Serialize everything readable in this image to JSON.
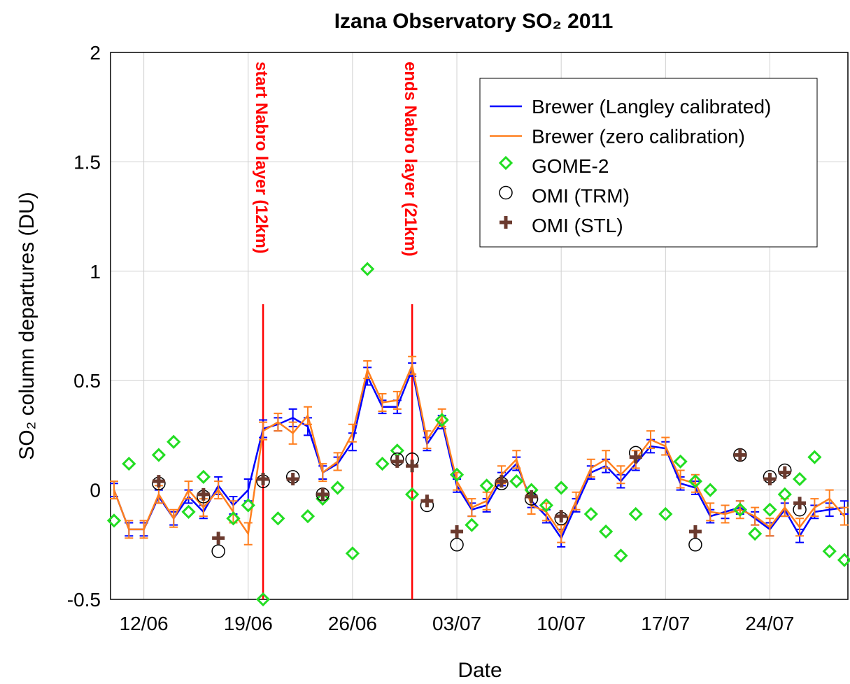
{
  "chart_data": {
    "type": "line",
    "title": "Izana Observatory SO₂ 2011",
    "x_label": "Date",
    "y_label": "SO₂ column departures (DU)",
    "xlim": [
      "10/06",
      "29/07"
    ],
    "xticks": [
      "12/06",
      "19/06",
      "26/06",
      "03/07",
      "10/07",
      "17/07",
      "24/07"
    ],
    "ylim": [
      -0.5,
      2
    ],
    "yticks": [
      -0.5,
      0,
      0.5,
      1,
      1.5,
      2
    ],
    "grid": true,
    "legend": "upper right",
    "annotations": [
      {
        "text": "start Nabro layer (12km)",
        "x": "20/06",
        "color": "#ff0000"
      },
      {
        "text": "ends Nabro layer (21km)",
        "x": "30/06",
        "color": "#ff0000"
      }
    ],
    "series": [
      {
        "name": "Brewer (Langley calibrated)",
        "color": "#0000ff",
        "marker": "none",
        "x": [
          "10/06",
          "11/06",
          "12/06",
          "13/06",
          "14/06",
          "15/06",
          "16/06",
          "17/06",
          "18/06",
          "19/06",
          "20/06",
          "21/06",
          "22/06",
          "23/06",
          "24/06",
          "25/06",
          "26/06",
          "27/06",
          "28/06",
          "29/06",
          "30/06",
          "01/07",
          "02/07",
          "03/07",
          "04/07",
          "05/07",
          "06/07",
          "07/07",
          "08/07",
          "09/07",
          "10/07",
          "11/07",
          "12/07",
          "13/07",
          "14/07",
          "15/07",
          "16/07",
          "17/07",
          "18/07",
          "19/07",
          "20/07",
          "21/07",
          "22/07",
          "23/07",
          "24/07",
          "25/07",
          "26/07",
          "27/07",
          "28/07",
          "29/07"
        ],
        "values": [
          0.0,
          -0.18,
          -0.18,
          -0.03,
          -0.13,
          -0.03,
          -0.1,
          0.02,
          -0.07,
          0.0,
          0.28,
          0.3,
          0.33,
          0.29,
          0.08,
          0.12,
          0.22,
          0.52,
          0.38,
          0.38,
          0.55,
          0.21,
          0.31,
          0.02,
          -0.09,
          -0.07,
          0.05,
          0.12,
          -0.05,
          -0.12,
          -0.22,
          -0.07,
          0.08,
          0.11,
          0.04,
          0.12,
          0.2,
          0.19,
          0.03,
          0.01,
          -0.12,
          -0.1,
          -0.08,
          -0.13,
          -0.18,
          -0.09,
          -0.21,
          -0.1,
          -0.09,
          -0.08
        ],
        "errors": [
          0.03,
          0.03,
          0.03,
          0.03,
          0.03,
          0.03,
          0.03,
          0.04,
          0.04,
          0.05,
          0.04,
          0.03,
          0.04,
          0.04,
          0.03,
          0.03,
          0.04,
          0.04,
          0.03,
          0.03,
          0.03,
          0.03,
          0.03,
          0.03,
          0.03,
          0.03,
          0.03,
          0.03,
          0.03,
          0.03,
          0.04,
          0.03,
          0.03,
          0.03,
          0.03,
          0.03,
          0.03,
          0.03,
          0.03,
          0.03,
          0.03,
          0.03,
          0.03,
          0.03,
          0.03,
          0.03,
          0.03,
          0.03,
          0.03,
          0.03
        ]
      },
      {
        "name": "Brewer (zero calibration)",
        "color": "#ff7f1e",
        "marker": "none",
        "x": [
          "10/06",
          "11/06",
          "12/06",
          "13/06",
          "14/06",
          "15/06",
          "16/06",
          "17/06",
          "18/06",
          "19/06",
          "20/06",
          "21/06",
          "22/06",
          "23/06",
          "24/06",
          "25/06",
          "26/06",
          "27/06",
          "28/06",
          "29/06",
          "30/06",
          "01/07",
          "02/07",
          "03/07",
          "04/07",
          "05/07",
          "06/07",
          "07/07",
          "08/07",
          "09/07",
          "10/07",
          "11/07",
          "12/07",
          "13/07",
          "14/07",
          "15/07",
          "16/07",
          "17/07",
          "18/07",
          "19/07",
          "20/07",
          "21/07",
          "22/07",
          "23/07",
          "24/07",
          "25/07",
          "26/07",
          "27/07",
          "28/07",
          "29/07"
        ],
        "values": [
          0.0,
          -0.18,
          -0.18,
          -0.02,
          -0.13,
          0.0,
          -0.08,
          0.0,
          -0.1,
          -0.2,
          0.27,
          0.31,
          0.26,
          0.34,
          0.08,
          0.13,
          0.26,
          0.55,
          0.4,
          0.41,
          0.57,
          0.23,
          0.33,
          0.04,
          -0.08,
          -0.05,
          0.07,
          0.14,
          -0.07,
          -0.1,
          -0.2,
          -0.05,
          0.1,
          0.14,
          0.07,
          0.14,
          0.23,
          0.2,
          0.05,
          0.03,
          -0.1,
          -0.11,
          -0.09,
          -0.12,
          -0.17,
          -0.08,
          -0.17,
          -0.08,
          -0.04,
          -0.12
        ],
        "errors": [
          0.04,
          0.04,
          0.04,
          0.04,
          0.04,
          0.04,
          0.04,
          0.04,
          0.05,
          0.05,
          0.04,
          0.04,
          0.05,
          0.04,
          0.04,
          0.04,
          0.04,
          0.04,
          0.04,
          0.04,
          0.04,
          0.04,
          0.04,
          0.04,
          0.04,
          0.04,
          0.04,
          0.04,
          0.04,
          0.04,
          0.04,
          0.04,
          0.04,
          0.04,
          0.04,
          0.04,
          0.04,
          0.04,
          0.04,
          0.04,
          0.04,
          0.04,
          0.04,
          0.04,
          0.04,
          0.04,
          0.04,
          0.04,
          0.04,
          0.04
        ]
      },
      {
        "name": "GOME-2",
        "color": "#22dd22",
        "marker": "diamond",
        "x": [
          "10/06",
          "11/06",
          "13/06",
          "14/06",
          "15/06",
          "16/06",
          "18/06",
          "19/06",
          "20/06",
          "21/06",
          "23/06",
          "24/06",
          "25/06",
          "26/06",
          "27/06",
          "28/06",
          "29/06",
          "30/06",
          "02/07",
          "03/07",
          "04/07",
          "05/07",
          "07/07",
          "08/07",
          "09/07",
          "10/07",
          "12/07",
          "13/07",
          "14/07",
          "15/07",
          "17/07",
          "18/07",
          "19/07",
          "20/07",
          "22/07",
          "23/07",
          "24/07",
          "25/07",
          "26/07",
          "27/07",
          "28/07",
          "29/07"
        ],
        "values": [
          -0.14,
          0.12,
          0.16,
          0.22,
          -0.1,
          0.06,
          -0.13,
          -0.07,
          -0.5,
          -0.13,
          -0.12,
          -0.04,
          0.01,
          -0.29,
          1.01,
          0.12,
          0.18,
          -0.02,
          0.32,
          0.07,
          -0.16,
          0.02,
          0.04,
          0.0,
          -0.07,
          0.01,
          -0.11,
          -0.19,
          -0.3,
          -0.11,
          -0.11,
          0.13,
          0.04,
          0.0,
          -0.09,
          -0.2,
          -0.09,
          -0.02,
          0.05,
          0.15,
          -0.28,
          -0.32
        ]
      },
      {
        "name": "OMI (TRM)",
        "color": "#000000",
        "marker": "circle",
        "x": [
          "13/06",
          "16/06",
          "17/06",
          "20/06",
          "22/06",
          "24/06",
          "29/06",
          "30/06",
          "01/07",
          "03/07",
          "06/07",
          "08/07",
          "10/07",
          "15/07",
          "19/07",
          "22/07",
          "24/07",
          "25/07",
          "26/07"
        ],
        "values": [
          0.03,
          -0.03,
          -0.28,
          0.04,
          0.06,
          -0.02,
          0.14,
          0.14,
          -0.07,
          -0.25,
          0.03,
          -0.04,
          -0.13,
          0.17,
          -0.25,
          0.16,
          0.06,
          0.09,
          -0.09
        ]
      },
      {
        "name": "OMI (STL)",
        "color": "#6b3a2e",
        "marker": "plus",
        "x": [
          "13/06",
          "16/06",
          "17/06",
          "20/06",
          "22/06",
          "24/06",
          "29/06",
          "30/06",
          "01/07",
          "03/07",
          "06/07",
          "08/07",
          "10/07",
          "15/07",
          "19/07",
          "22/07",
          "24/07",
          "25/07",
          "26/07"
        ],
        "values": [
          0.04,
          -0.02,
          -0.22,
          0.05,
          0.05,
          -0.02,
          0.13,
          0.11,
          -0.05,
          -0.19,
          0.04,
          -0.03,
          -0.12,
          0.15,
          -0.19,
          0.16,
          0.05,
          0.08,
          -0.06
        ]
      }
    ]
  }
}
